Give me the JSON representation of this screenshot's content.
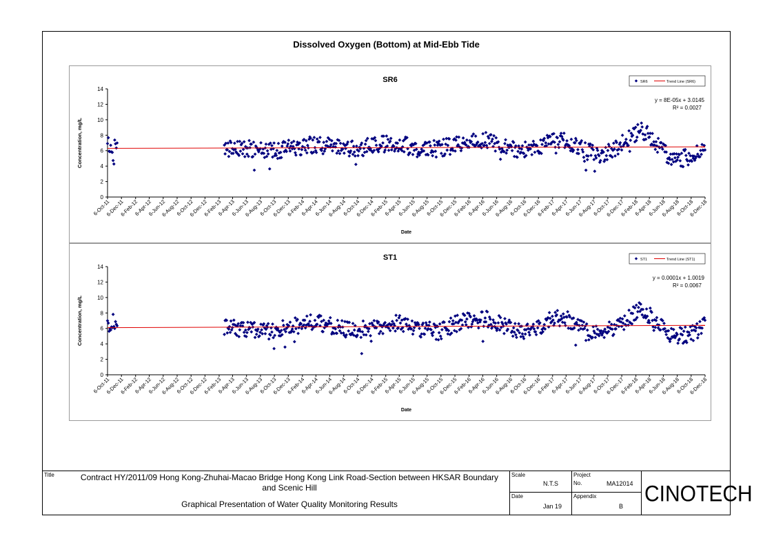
{
  "page_title": "Dissolved Oxygen (Bottom) at Mid-Ebb Tide",
  "colors": {
    "marker": "#00007f",
    "trend": "#e00000",
    "text": "#000000",
    "panel_border": "#9a9a9a"
  },
  "chart_data": [
    {
      "type": "scatter",
      "title": "SR6",
      "xlabel": "Date",
      "ylabel": "Concentration, mg/L",
      "ylim": [
        0,
        14
      ],
      "yticks": [
        "0",
        "2",
        "4",
        "6",
        "8",
        "10",
        "12",
        "14"
      ],
      "xlim": [
        "2011-10-06",
        "2018-12-06"
      ],
      "xticks": [
        "6-Oct-11",
        "6-Dec-11",
        "6-Feb-12",
        "6-Apr-12",
        "6-Jun-12",
        "6-Aug-12",
        "6-Oct-12",
        "6-Dec-12",
        "6-Feb-13",
        "6-Apr-13",
        "6-Jun-13",
        "6-Aug-13",
        "6-Oct-13",
        "6-Dec-13",
        "6-Feb-14",
        "6-Apr-14",
        "6-Jun-14",
        "6-Aug-14",
        "6-Oct-14",
        "6-Dec-14",
        "6-Feb-15",
        "6-Apr-15",
        "6-Jun-15",
        "6-Aug-15",
        "6-Oct-15",
        "6-Dec-15",
        "6-Feb-16",
        "6-Apr-16",
        "6-Jun-16",
        "6-Aug-16",
        "6-Oct-16",
        "6-Dec-16",
        "6-Feb-17",
        "6-Apr-17",
        "6-Jun-17",
        "6-Aug-17",
        "6-Oct-17",
        "6-Dec-17",
        "6-Feb-18",
        "6-Apr-18",
        "6-Jun-18",
        "6-Aug-18",
        "6-Oct-18",
        "6-Dec-18"
      ],
      "legend": {
        "position": "top-right",
        "entries": [
          "SR6",
          "Trend Line (SR6)"
        ]
      },
      "trend_equation": "y = 8E-05x + 3.0145",
      "r_squared": "R² = 0.0027",
      "trend": {
        "start": 6.3,
        "end": 6.5
      },
      "series": [
        {
          "name": "SR6",
          "profile": [
            [
              "2011-10-06",
              6.6
            ],
            [
              "2011-11-20",
              6.8
            ],
            [
              "2013-03-01",
              6.2
            ],
            [
              "2013-06-01",
              6.3
            ],
            [
              "2013-10-01",
              6.0
            ],
            [
              "2014-01-01",
              6.4
            ],
            [
              "2014-04-01",
              6.8
            ],
            [
              "2014-07-01",
              6.5
            ],
            [
              "2014-10-01",
              6.2
            ],
            [
              "2015-01-01",
              6.8
            ],
            [
              "2015-04-01",
              7.0
            ],
            [
              "2015-07-01",
              6.1
            ],
            [
              "2015-10-01",
              6.3
            ],
            [
              "2016-01-01",
              6.9
            ],
            [
              "2016-04-01",
              7.4
            ],
            [
              "2016-07-01",
              6.7
            ],
            [
              "2016-10-01",
              6.0
            ],
            [
              "2016-12-01",
              6.2
            ],
            [
              "2017-02-01",
              7.4
            ],
            [
              "2017-04-01",
              7.5
            ],
            [
              "2017-07-01",
              5.9
            ],
            [
              "2017-09-01",
              5.5
            ],
            [
              "2017-11-01",
              6.1
            ],
            [
              "2018-01-01",
              7.4
            ],
            [
              "2018-03-01",
              8.8
            ],
            [
              "2018-05-01",
              7.2
            ],
            [
              "2018-07-01",
              5.2
            ],
            [
              "2018-09-01",
              5.0
            ],
            [
              "2018-11-01",
              5.6
            ],
            [
              "2018-12-06",
              6.6
            ]
          ]
        }
      ]
    },
    {
      "type": "scatter",
      "title": "ST1",
      "xlabel": "Date",
      "ylabel": "Concentration, mg/L",
      "ylim": [
        0,
        14
      ],
      "yticks": [
        "0",
        "2",
        "4",
        "6",
        "8",
        "10",
        "12",
        "14"
      ],
      "xlim": [
        "2011-10-06",
        "2018-12-06"
      ],
      "xticks": [
        "6-Oct-11",
        "6-Dec-11",
        "6-Feb-12",
        "6-Apr-12",
        "6-Jun-12",
        "6-Aug-12",
        "6-Oct-12",
        "6-Dec-12",
        "6-Feb-13",
        "6-Apr-13",
        "6-Jun-13",
        "6-Aug-13",
        "6-Oct-13",
        "6-Dec-13",
        "6-Feb-14",
        "6-Apr-14",
        "6-Jun-14",
        "6-Aug-14",
        "6-Oct-14",
        "6-Dec-14",
        "6-Feb-15",
        "6-Apr-15",
        "6-Jun-15",
        "6-Aug-15",
        "6-Oct-15",
        "6-Dec-15",
        "6-Feb-16",
        "6-Apr-16",
        "6-Jun-16",
        "6-Aug-16",
        "6-Oct-16",
        "6-Dec-16",
        "6-Feb-17",
        "6-Apr-17",
        "6-Jun-17",
        "6-Aug-17",
        "6-Oct-17",
        "6-Dec-17",
        "6-Feb-18",
        "6-Apr-18",
        "6-Jun-18",
        "6-Aug-18",
        "6-Oct-18",
        "6-Dec-18"
      ],
      "legend": {
        "position": "top-right",
        "entries": [
          "ST1",
          "Trend Line (ST1)"
        ]
      },
      "trend_equation": "y = 0.0001x + 1.0019",
      "r_squared": "R² = 0.0067",
      "trend": {
        "start": 6.1,
        "end": 6.4
      },
      "series": [
        {
          "name": "ST1",
          "profile": [
            [
              "2011-10-06",
              6.5
            ],
            [
              "2011-11-20",
              6.9
            ],
            [
              "2013-03-01",
              6.2
            ],
            [
              "2013-06-01",
              5.8
            ],
            [
              "2013-10-01",
              5.7
            ],
            [
              "2014-01-01",
              6.3
            ],
            [
              "2014-04-01",
              6.9
            ],
            [
              "2014-07-01",
              6.2
            ],
            [
              "2014-10-01",
              5.7
            ],
            [
              "2015-01-01",
              6.3
            ],
            [
              "2015-04-01",
              6.8
            ],
            [
              "2015-07-01",
              5.9
            ],
            [
              "2015-10-01",
              5.6
            ],
            [
              "2016-01-01",
              6.9
            ],
            [
              "2016-04-01",
              7.4
            ],
            [
              "2016-07-01",
              6.4
            ],
            [
              "2016-10-01",
              5.7
            ],
            [
              "2016-12-01",
              5.9
            ],
            [
              "2017-02-01",
              7.4
            ],
            [
              "2017-04-01",
              7.3
            ],
            [
              "2017-07-01",
              5.7
            ],
            [
              "2017-09-01",
              5.3
            ],
            [
              "2017-11-01",
              6.0
            ],
            [
              "2018-01-01",
              7.2
            ],
            [
              "2018-03-01",
              8.5
            ],
            [
              "2018-05-01",
              7.0
            ],
            [
              "2018-07-01",
              5.2
            ],
            [
              "2018-09-01",
              5.0
            ],
            [
              "2018-11-01",
              5.6
            ],
            [
              "2018-12-06",
              6.5
            ]
          ]
        }
      ]
    }
  ],
  "title_block": {
    "title_label": "Title",
    "contract_line1": "Contract HY/2011/09 Hong Kong-Zhuhai-Macao Bridge Hong Kong Link Road-Section between HKSAR Boundary",
    "contract_line2": "and Scenic Hill",
    "subtitle": "Graphical Presentation of Water Quality Monitoring Results",
    "scale_label": "Scale",
    "scale_value": "N.T.S",
    "project_label": "Project",
    "project_no_label": "No.",
    "project_no": "MA12014",
    "date_label": "Date",
    "date_value": "Jan 19",
    "appendix_label": "Appendix",
    "appendix_value": "B",
    "logo_text": "CINOTECH"
  }
}
